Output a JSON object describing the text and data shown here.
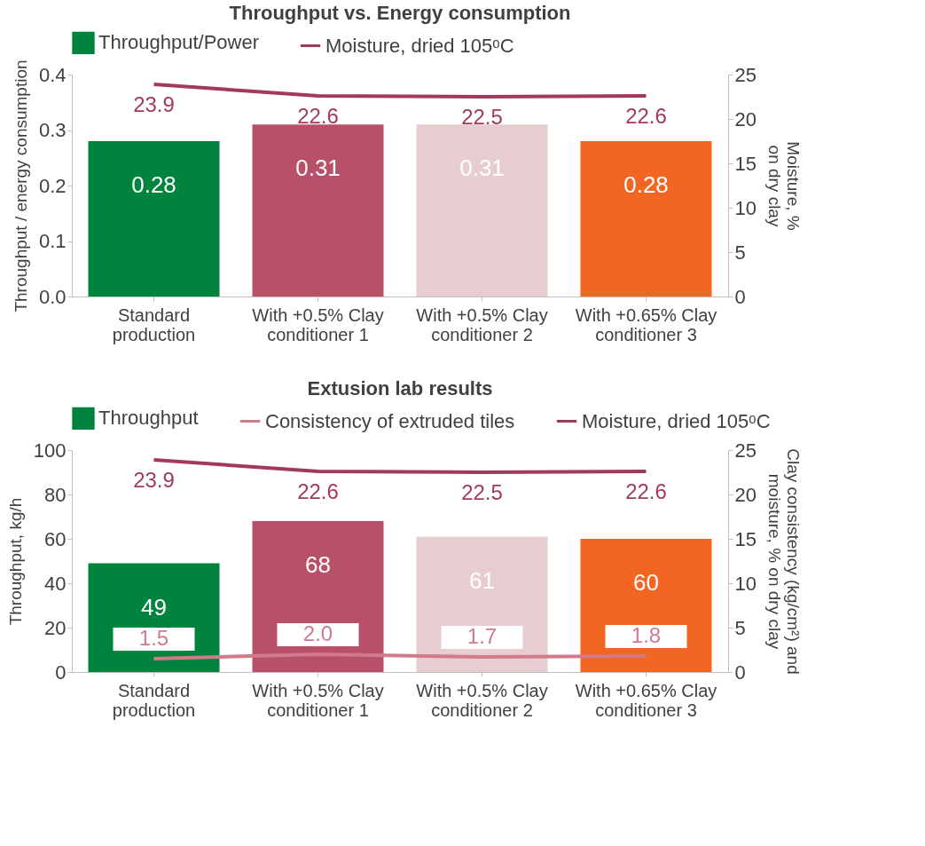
{
  "chart_data": [
    {
      "type": "bar",
      "title": "Throughput vs. Energy consumption",
      "categories": [
        "Standard production",
        "With +0.5% Clay conditioner 1",
        "With +0.5% Clay conditioner 2",
        "With +0.65% Clay conditioner 3"
      ],
      "ylabel": "Throughput / energy consumption",
      "y2label": "Moisture, % on dry clay",
      "ylim": [
        0,
        0.4
      ],
      "yticks": [
        {
          "value": 0,
          "label": "0.0"
        },
        0.1,
        0.2,
        0.3,
        0.4
      ],
      "y2lim": [
        0,
        25
      ],
      "y2ticks": [
        0,
        5,
        10,
        15,
        20,
        25
      ],
      "grid": false,
      "legend": "top",
      "data_labels": true,
      "series": [
        {
          "name": "Throughput/Power",
          "colors": [
            "#00843d",
            "#b9506a",
            "#e8cdd0",
            "#f26522"
          ],
          "values": [
            0.28,
            0.31,
            0.31,
            0.28
          ]
        },
        {
          "name": "Moisture, dried 105ᵒC",
          "type": "line",
          "axis": "y2",
          "color": "#a33a5a",
          "values": [
            23.9,
            22.6,
            22.5,
            22.6
          ]
        }
      ]
    },
    {
      "type": "bar",
      "title": "Extusion lab results",
      "categories": [
        "Standard production",
        "With +0.5% Clay conditioner 1",
        "With +0.5% Clay conditioner 2",
        "With +0.65% Clay conditioner 3"
      ],
      "ylabel": "Throughput, kg/h",
      "y2label": "Clay consistency (kg/cm²) and moisture, % on dry clay",
      "ylim": [
        0,
        100
      ],
      "yticks": [
        0,
        20,
        40,
        60,
        80,
        100
      ],
      "y2lim": [
        0,
        25
      ],
      "y2ticks": [
        0,
        5,
        10,
        15,
        20,
        25
      ],
      "grid": false,
      "legend": "top",
      "data_labels": true,
      "series": [
        {
          "name": "Throughput",
          "colors": [
            "#00843d",
            "#b9506a",
            "#e8cdd0",
            "#f26522"
          ],
          "values": [
            49,
            68,
            61,
            60
          ]
        },
        {
          "name": "Consistency of extruded tiles",
          "type": "line",
          "axis": "y2",
          "color": "#d07a8a",
          "values": [
            1.5,
            2.0,
            1.7,
            1.8
          ],
          "value_labels": [
            "1.5",
            "2.0",
            "1.7",
            "1.8"
          ]
        },
        {
          "name": "Moisture, dried 105ᵒC",
          "type": "line",
          "axis": "y2",
          "color": "#a33a5a",
          "values": [
            23.9,
            22.6,
            22.5,
            22.6
          ]
        }
      ]
    }
  ]
}
